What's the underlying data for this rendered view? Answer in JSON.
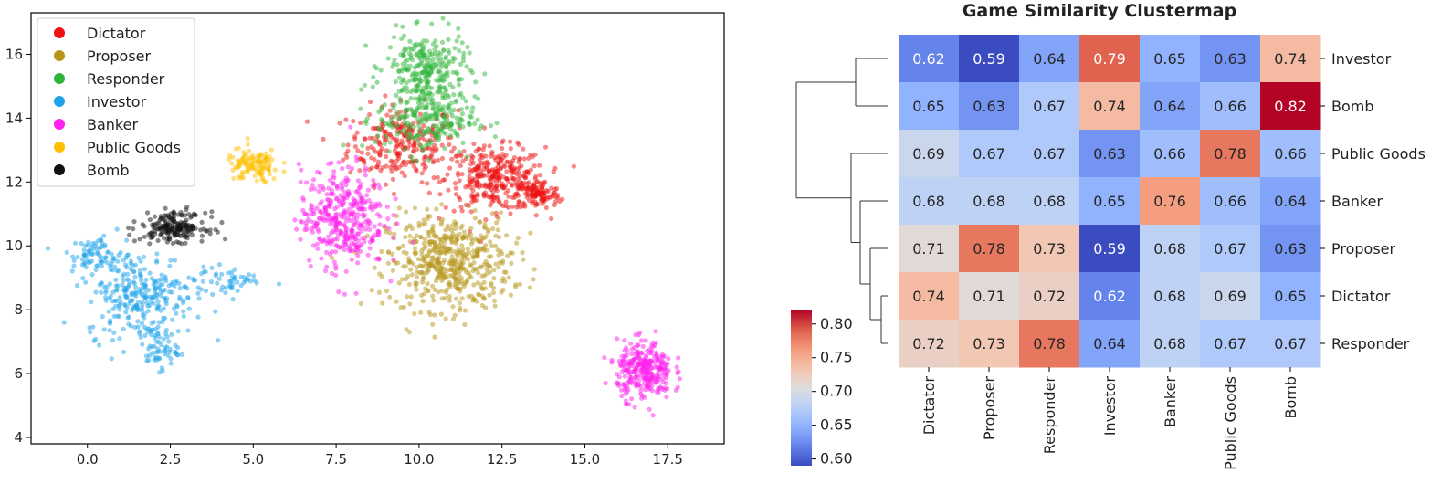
{
  "chart_data": [
    {
      "type": "scatter",
      "title": "",
      "xlabel": "",
      "ylabel": "",
      "xlim": [
        -1.7,
        19.2
      ],
      "ylim": [
        3.8,
        17.3
      ],
      "xticks": [
        0.0,
        2.5,
        5.0,
        7.5,
        10.0,
        12.5,
        15.0,
        17.5
      ],
      "xtick_labels": [
        "0.0",
        "2.5",
        "5.0",
        "7.5",
        "10.0",
        "12.5",
        "15.0",
        "17.5"
      ],
      "yticks": [
        4,
        6,
        8,
        10,
        12,
        14,
        16
      ],
      "ytick_labels": [
        "4",
        "6",
        "8",
        "10",
        "12",
        "14",
        "16"
      ],
      "legend_position": "top-left",
      "series": [
        {
          "name": "Dictator",
          "color": "#ee1111",
          "clusters": [
            {
              "cx": 9.5,
              "cy": 13.2,
              "sx": 1.1,
              "sy": 0.8,
              "n": 260
            },
            {
              "cx": 12.3,
              "cy": 12.1,
              "sx": 1.0,
              "sy": 0.65,
              "n": 320
            },
            {
              "cx": 13.6,
              "cy": 11.6,
              "sx": 0.45,
              "sy": 0.3,
              "n": 110
            }
          ]
        },
        {
          "name": "Proposer",
          "color": "#b5961a",
          "clusters": [
            {
              "cx": 10.9,
              "cy": 9.5,
              "sx": 1.25,
              "sy": 1.0,
              "n": 520
            }
          ]
        },
        {
          "name": "Responder",
          "color": "#2fb53a",
          "clusters": [
            {
              "cx": 10.2,
              "cy": 15.6,
              "sx": 0.8,
              "sy": 0.7,
              "n": 240
            },
            {
              "cx": 10.2,
              "cy": 14.0,
              "sx": 1.0,
              "sy": 0.75,
              "n": 260
            }
          ]
        },
        {
          "name": "Investor",
          "color": "#1ea3ea",
          "clusters": [
            {
              "cx": 1.6,
              "cy": 8.5,
              "sx": 1.1,
              "sy": 0.9,
              "n": 280
            },
            {
              "cx": 0.3,
              "cy": 9.7,
              "sx": 0.5,
              "sy": 0.4,
              "n": 70
            },
            {
              "cx": 2.1,
              "cy": 6.8,
              "sx": 0.4,
              "sy": 0.45,
              "n": 60
            },
            {
              "cx": 4.3,
              "cy": 8.9,
              "sx": 0.7,
              "sy": 0.3,
              "n": 50
            }
          ]
        },
        {
          "name": "Banker",
          "color": "#ff22ee",
          "clusters": [
            {
              "cx": 7.7,
              "cy": 10.9,
              "sx": 0.85,
              "sy": 1.05,
              "n": 380
            },
            {
              "cx": 16.8,
              "cy": 6.1,
              "sx": 0.55,
              "sy": 0.6,
              "n": 300
            }
          ]
        },
        {
          "name": "Public Goods",
          "color": "#ffbf00",
          "clusters": [
            {
              "cx": 5.0,
              "cy": 12.5,
              "sx": 0.55,
              "sy": 0.35,
              "n": 120
            }
          ]
        },
        {
          "name": "Bomb",
          "color": "#111111",
          "clusters": [
            {
              "cx": 2.6,
              "cy": 10.6,
              "sx": 0.65,
              "sy": 0.3,
              "n": 200
            }
          ]
        }
      ]
    },
    {
      "type": "heatmap",
      "title": "Game Similarity Clustermap",
      "row_labels": [
        "Investor",
        "Bomb",
        "Public Goods",
        "Banker",
        "Proposer",
        "Dictator",
        "Responder"
      ],
      "col_labels": [
        "Dictator",
        "Proposer",
        "Responder",
        "Investor",
        "Banker",
        "Public Goods",
        "Bomb"
      ],
      "values": [
        [
          0.62,
          0.59,
          0.64,
          0.79,
          0.65,
          0.63,
          0.74
        ],
        [
          0.65,
          0.63,
          0.67,
          0.74,
          0.64,
          0.66,
          0.82
        ],
        [
          0.69,
          0.67,
          0.67,
          0.63,
          0.66,
          0.78,
          0.66
        ],
        [
          0.68,
          0.68,
          0.68,
          0.65,
          0.76,
          0.66,
          0.64
        ],
        [
          0.71,
          0.78,
          0.73,
          0.59,
          0.68,
          0.67,
          0.63
        ],
        [
          0.74,
          0.71,
          0.72,
          0.62,
          0.68,
          0.69,
          0.65
        ],
        [
          0.72,
          0.73,
          0.78,
          0.64,
          0.68,
          0.67,
          0.67
        ]
      ],
      "colormap": "coolwarm",
      "vmin": 0.59,
      "vmax": 0.82,
      "colorbar_ticks": [
        0.6,
        0.65,
        0.7,
        0.75,
        0.8
      ],
      "colorbar_tick_labels": [
        "0.60",
        "0.65",
        "0.70",
        "0.75",
        "0.80"
      ],
      "row_dendrogram_heights": {
        "investor_bomb": 0.35,
        "dictator_responder": 0.07,
        "proposer_dictator_responder": 0.19,
        "banker_prev": 0.3,
        "publicgoods_prev": 0.4,
        "root": 1.0
      }
    }
  ]
}
